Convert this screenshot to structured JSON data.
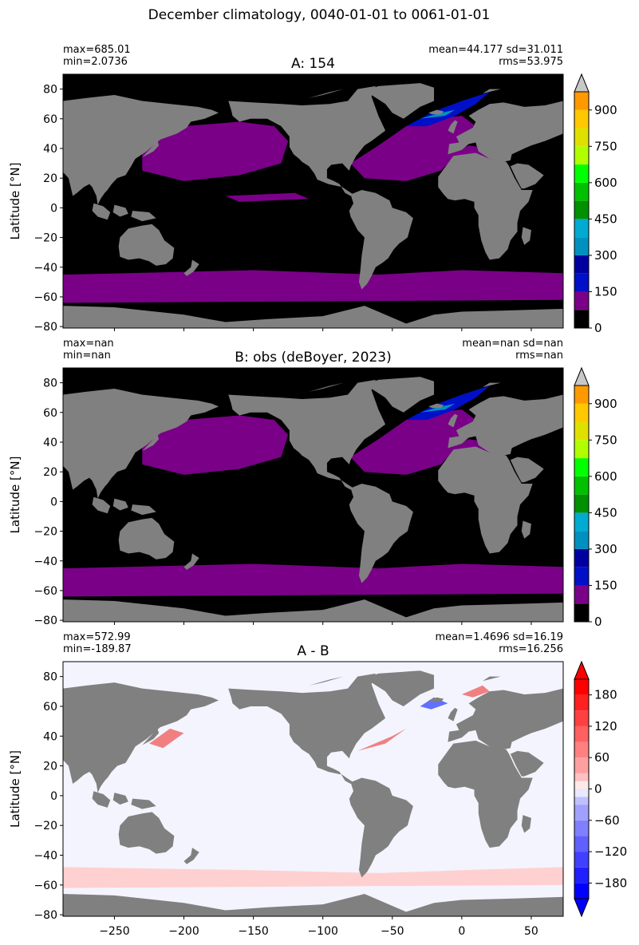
{
  "suptitle": "December climatology, 0040-01-01 to 0061-01-01",
  "colors": {
    "land": "#808080",
    "ocean_black": "#000000",
    "purple": "#7a0088",
    "blue": "#0010c8",
    "deep_blue": "#0000a0",
    "teal": "#0090c0",
    "green": "#00c000",
    "yellow": "#e0e000",
    "orange": "#ff9900",
    "red": "#e00000",
    "diff_white": "#f4f4ff",
    "diff_pink": "#ffd0d0",
    "diff_red": "#f08080",
    "diff_blue": "#6070ff",
    "extend_gray": "#c8c8c8"
  },
  "chart_data": [
    {
      "type": "heatmap",
      "panel_id": "A",
      "title": "A: 154",
      "stats_left": [
        "max=685.01",
        "min=2.0736"
      ],
      "stats_right": [
        "mean=44.177 sd=31.011",
        "rms=53.975"
      ],
      "ylabel": "Latitude [°N]",
      "xlim": [
        -287,
        73
      ],
      "ylim": [
        -81,
        90
      ],
      "yticks": [
        "80",
        "60",
        "40",
        "20",
        "0",
        "−20",
        "−40",
        "−60",
        "−80"
      ],
      "ytick_values": [
        80,
        60,
        40,
        20,
        0,
        -20,
        -40,
        -60,
        -80
      ],
      "xtick_values": [
        -250,
        -200,
        -150,
        -100,
        -50,
        0,
        50
      ],
      "colorbar": {
        "levels": [
          0,
          75,
          150,
          225,
          300,
          375,
          450,
          525,
          600,
          675,
          750,
          825,
          900,
          975
        ],
        "colors": [
          "#000000",
          "#7a0088",
          "#0010c8",
          "#0000a0",
          "#0090c0",
          "#00aad0",
          "#009000",
          "#00c000",
          "#00ff00",
          "#b0ff00",
          "#e0e000",
          "#ffc800",
          "#ff9900",
          "#e00000"
        ],
        "ticks": [
          "0",
          "150",
          "300",
          "450",
          "600",
          "750",
          "900"
        ],
        "tick_values": [
          0,
          150,
          300,
          450,
          600,
          750,
          900
        ],
        "extend": "max"
      }
    },
    {
      "type": "heatmap",
      "panel_id": "B",
      "title": "B: obs (deBoyer, 2023)",
      "stats_left": [
        "max=nan",
        "min=nan"
      ],
      "stats_right": [
        "mean=nan sd=nan",
        "rms=nan"
      ],
      "ylabel": "Latitude [°N]",
      "xlim": [
        -287,
        73
      ],
      "ylim": [
        -81,
        90
      ],
      "yticks": [
        "80",
        "60",
        "40",
        "20",
        "0",
        "−20",
        "−40",
        "−60",
        "−80"
      ],
      "ytick_values": [
        80,
        60,
        40,
        20,
        0,
        -20,
        -40,
        -60,
        -80
      ],
      "xtick_values": [
        -250,
        -200,
        -150,
        -100,
        -50,
        0,
        50
      ],
      "colorbar": {
        "levels": [
          0,
          75,
          150,
          225,
          300,
          375,
          450,
          525,
          600,
          675,
          750,
          825,
          900,
          975
        ],
        "colors": [
          "#000000",
          "#7a0088",
          "#0010c8",
          "#0000a0",
          "#0090c0",
          "#00aad0",
          "#009000",
          "#00c000",
          "#00ff00",
          "#b0ff00",
          "#e0e000",
          "#ffc800",
          "#ff9900",
          "#e00000"
        ],
        "ticks": [
          "0",
          "150",
          "300",
          "450",
          "600",
          "750",
          "900"
        ],
        "tick_values": [
          0,
          150,
          300,
          450,
          600,
          750,
          900
        ],
        "extend": "max"
      }
    },
    {
      "type": "heatmap",
      "panel_id": "C",
      "title": "A - B",
      "stats_left": [
        "max=572.99",
        "min=-189.87"
      ],
      "stats_right": [
        "mean=1.4696 sd=16.19",
        "rms=16.256"
      ],
      "ylabel": "Latitude [°N]",
      "xlim": [
        -287,
        73
      ],
      "ylim": [
        -81,
        90
      ],
      "yticks": [
        "80",
        "60",
        "40",
        "20",
        "0",
        "−20",
        "−40",
        "−60",
        "−80"
      ],
      "ytick_values": [
        80,
        60,
        40,
        20,
        0,
        -20,
        -40,
        -60,
        -80
      ],
      "xticks": [
        "−250",
        "−200",
        "−150",
        "−100",
        "−50",
        "0",
        "50"
      ],
      "xtick_values": [
        -250,
        -200,
        -150,
        -100,
        -50,
        0,
        50
      ],
      "colorbar": {
        "levels": [
          -210,
          -180,
          -150,
          -120,
          -90,
          -60,
          -30,
          -15,
          0,
          15,
          30,
          60,
          90,
          120,
          150,
          180,
          210
        ],
        "colors": [
          "#0000ff",
          "#2020ff",
          "#4040ff",
          "#6060ff",
          "#8080ff",
          "#a0a0ff",
          "#c0c0ff",
          "#e8e8ff",
          "#ffe8e8",
          "#ffc0c0",
          "#ffa0a0",
          "#ff8080",
          "#ff6060",
          "#ff4040",
          "#ff2020",
          "#ff0000"
        ],
        "ticks": [
          "−180",
          "−120",
          "−60",
          "0",
          "60",
          "120",
          "180"
        ],
        "tick_values": [
          -180,
          -120,
          -60,
          0,
          60,
          120,
          180
        ],
        "extend": "both"
      }
    }
  ]
}
